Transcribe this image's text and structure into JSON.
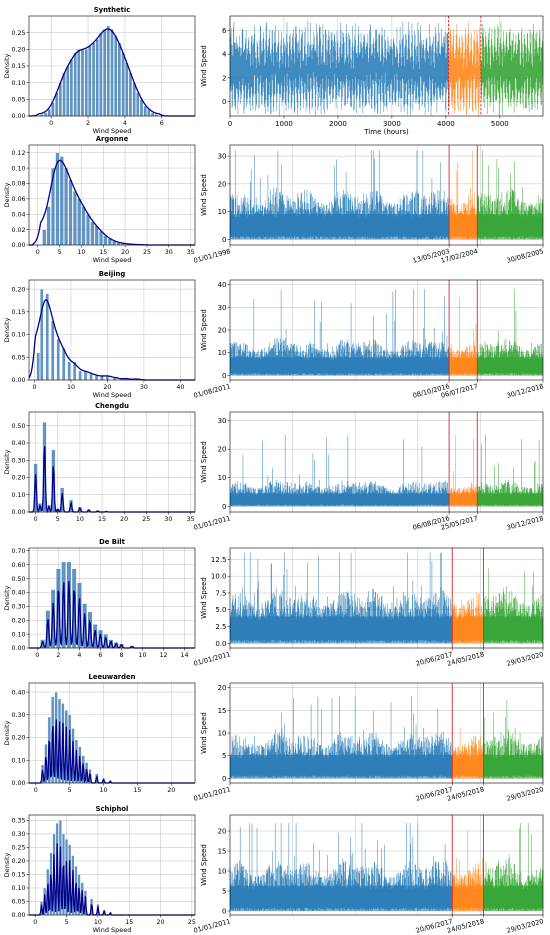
{
  "figure": {
    "colors": {
      "train": "#1f77b4",
      "val": "#ff7f0e",
      "test": "#2ca02c",
      "kde": "#00008b",
      "split_line": "#d62728",
      "grid": "#b0b0b0",
      "hist_bar": "#3a78b4"
    }
  },
  "chart_data": [
    {
      "type": "bar",
      "title": "Synthetic",
      "xlabel": "Wind Speed",
      "ylabel": "Density",
      "xlim": [
        -1.2,
        7.8
      ],
      "ylim": [
        0,
        0.3
      ],
      "xticks": [
        0,
        2,
        4,
        6
      ],
      "yticks": [
        0.0,
        0.05,
        0.1,
        0.15,
        0.2,
        0.25
      ],
      "kde": "smooth",
      "bins": [
        {
          "x": -0.5,
          "v": 0.005
        },
        {
          "x": -0.3,
          "v": 0.01
        },
        {
          "x": -0.1,
          "v": 0.02
        },
        {
          "x": 0.1,
          "v": 0.04
        },
        {
          "x": 0.3,
          "v": 0.07
        },
        {
          "x": 0.5,
          "v": 0.1
        },
        {
          "x": 0.7,
          "v": 0.13
        },
        {
          "x": 0.9,
          "v": 0.15
        },
        {
          "x": 1.1,
          "v": 0.17
        },
        {
          "x": 1.3,
          "v": 0.19
        },
        {
          "x": 1.5,
          "v": 0.2
        },
        {
          "x": 1.7,
          "v": 0.2
        },
        {
          "x": 1.9,
          "v": 0.2
        },
        {
          "x": 2.1,
          "v": 0.21
        },
        {
          "x": 2.3,
          "v": 0.22
        },
        {
          "x": 2.5,
          "v": 0.23
        },
        {
          "x": 2.7,
          "v": 0.25
        },
        {
          "x": 2.9,
          "v": 0.26
        },
        {
          "x": 3.1,
          "v": 0.27
        },
        {
          "x": 3.3,
          "v": 0.26
        },
        {
          "x": 3.5,
          "v": 0.24
        },
        {
          "x": 3.7,
          "v": 0.22
        },
        {
          "x": 3.9,
          "v": 0.19
        },
        {
          "x": 4.1,
          "v": 0.16
        },
        {
          "x": 4.3,
          "v": 0.13
        },
        {
          "x": 4.5,
          "v": 0.1
        },
        {
          "x": 4.7,
          "v": 0.07
        },
        {
          "x": 4.9,
          "v": 0.05
        },
        {
          "x": 5.1,
          "v": 0.03
        },
        {
          "x": 5.3,
          "v": 0.02
        },
        {
          "x": 5.5,
          "v": 0.01
        },
        {
          "x": 5.7,
          "v": 0.005
        }
      ]
    },
    {
      "type": "line",
      "xlabel": "Time (hours)",
      "ylabel": "Wind Speed",
      "xlim": [
        0,
        5800
      ],
      "ylim": [
        -1.2,
        7.2
      ],
      "xticks": [
        0,
        1000,
        2000,
        3000,
        4000,
        5000
      ],
      "yticks": [
        0,
        2,
        4,
        6
      ],
      "split_lines": [
        4050,
        4650
      ],
      "split_line_style": "dashed",
      "series": [
        {
          "segment": "train",
          "x_range": [
            0,
            4050
          ]
        },
        {
          "segment": "validation",
          "x_range": [
            4050,
            4650
          ]
        },
        {
          "segment": "test",
          "x_range": [
            4650,
            5800
          ]
        }
      ],
      "envelope": {
        "mean": 2.6,
        "low": -0.8,
        "high": 6.5
      }
    },
    {
      "type": "bar",
      "title": "Argonne",
      "xlabel": "Wind Speed",
      "ylabel": "Density",
      "xlim": [
        -2,
        36
      ],
      "ylim": [
        0,
        0.13
      ],
      "xticks": [
        0,
        5,
        10,
        15,
        20,
        25,
        30,
        35
      ],
      "yticks": [
        0.0,
        0.02,
        0.04,
        0.06,
        0.08,
        0.1,
        0.12
      ],
      "kde": "smooth",
      "bins": [
        {
          "x": 1.5,
          "v": 0.02
        },
        {
          "x": 2.5,
          "v": 0.05
        },
        {
          "x": 3.5,
          "v": 0.1
        },
        {
          "x": 4.5,
          "v": 0.12
        },
        {
          "x": 5.5,
          "v": 0.115
        },
        {
          "x": 6.5,
          "v": 0.1
        },
        {
          "x": 7.5,
          "v": 0.085
        },
        {
          "x": 8.5,
          "v": 0.07
        },
        {
          "x": 9.5,
          "v": 0.06
        },
        {
          "x": 10.5,
          "v": 0.05
        },
        {
          "x": 11.5,
          "v": 0.04
        },
        {
          "x": 12.5,
          "v": 0.03
        },
        {
          "x": 13.5,
          "v": 0.025
        },
        {
          "x": 14.5,
          "v": 0.018
        },
        {
          "x": 15.5,
          "v": 0.012
        },
        {
          "x": 16.5,
          "v": 0.008
        },
        {
          "x": 17.5,
          "v": 0.005
        },
        {
          "x": 18.5,
          "v": 0.003
        },
        {
          "x": 19.5,
          "v": 0.002
        },
        {
          "x": 21,
          "v": 0.001
        },
        {
          "x": 23,
          "v": 0.0005
        }
      ]
    },
    {
      "type": "line",
      "ylabel": "Wind Speed",
      "xlim": [
        0,
        100
      ],
      "ylim": [
        -2,
        34
      ],
      "yticks": [
        0,
        10,
        20,
        30
      ],
      "date_ticks": [
        {
          "label": "01/01/1998",
          "pos": 0
        },
        {
          "label": "13/05/2003",
          "pos": 70
        },
        {
          "label": "17/02/2004",
          "pos": 79
        },
        {
          "label": "30/08/2005",
          "pos": 100
        }
      ],
      "split_lines": [
        70,
        79
      ],
      "split_line_style": "solid",
      "envelope": {
        "mean": 8,
        "low": 0,
        "high": 32
      }
    },
    {
      "type": "bar",
      "title": "Beijing",
      "xlabel": "Wind Speed",
      "ylabel": "Density",
      "xlim": [
        -1.5,
        44
      ],
      "ylim": [
        0,
        0.22
      ],
      "xticks": [
        0,
        10,
        20,
        30,
        40
      ],
      "yticks": [
        0.0,
        0.05,
        0.1,
        0.15,
        0.2
      ],
      "kde": "smooth",
      "bins": [
        {
          "x": 1,
          "v": 0.06
        },
        {
          "x": 2,
          "v": 0.2
        },
        {
          "x": 3.5,
          "v": 0.19
        },
        {
          "x": 5,
          "v": 0.13
        },
        {
          "x": 6.5,
          "v": 0.09
        },
        {
          "x": 8,
          "v": 0.07
        },
        {
          "x": 9.5,
          "v": 0.04
        },
        {
          "x": 11,
          "v": 0.04
        },
        {
          "x": 12.5,
          "v": 0.02
        },
        {
          "x": 14,
          "v": 0.02
        },
        {
          "x": 15.5,
          "v": 0.015
        },
        {
          "x": 17,
          "v": 0.01
        },
        {
          "x": 18.5,
          "v": 0.008
        },
        {
          "x": 20,
          "v": 0.01
        },
        {
          "x": 22,
          "v": 0.005
        },
        {
          "x": 25,
          "v": 0.003
        },
        {
          "x": 28,
          "v": 0.002
        }
      ]
    },
    {
      "type": "line",
      "ylabel": "Wind Speed",
      "xlim": [
        0,
        100
      ],
      "ylim": [
        -2,
        42
      ],
      "yticks": [
        0,
        10,
        20,
        30,
        40
      ],
      "date_ticks": [
        {
          "label": "01/08/2011",
          "pos": 0
        },
        {
          "label": "08/10/2016",
          "pos": 70
        },
        {
          "label": "06/07/2017",
          "pos": 79
        },
        {
          "label": "30/12/2018",
          "pos": 100
        }
      ],
      "split_lines": [
        70,
        79
      ],
      "split_line_style": "solid",
      "envelope": {
        "mean": 7,
        "low": 0,
        "high": 38
      }
    },
    {
      "type": "bar",
      "title": "Chengdu",
      "xlabel": "",
      "ylabel": "Density",
      "xlim": [
        -1.5,
        36
      ],
      "ylim": [
        0,
        0.58
      ],
      "xticks": [
        0,
        5,
        10,
        15,
        20,
        25,
        30,
        35
      ],
      "yticks": [
        0.0,
        0.1,
        0.2,
        0.3,
        0.4,
        0.5
      ],
      "kde": "peaks",
      "bins": [
        {
          "x": 0,
          "v": 0.28
        },
        {
          "x": 1,
          "v": 0.05
        },
        {
          "x": 2,
          "v": 0.52
        },
        {
          "x": 3,
          "v": 0.04
        },
        {
          "x": 4,
          "v": 0.36
        },
        {
          "x": 5,
          "v": 0.02
        },
        {
          "x": 6,
          "v": 0.14
        },
        {
          "x": 8,
          "v": 0.07
        },
        {
          "x": 10,
          "v": 0.03
        },
        {
          "x": 12,
          "v": 0.015
        },
        {
          "x": 14,
          "v": 0.008
        },
        {
          "x": 16,
          "v": 0.004
        }
      ]
    },
    {
      "type": "line",
      "ylabel": "Wind Speed",
      "xlim": [
        0,
        100
      ],
      "ylim": [
        -2,
        33
      ],
      "yticks": [
        0,
        10,
        20,
        30
      ],
      "date_ticks": [
        {
          "label": "01/01/2011",
          "pos": 0
        },
        {
          "label": "06/08/2016",
          "pos": 70
        },
        {
          "label": "25/05/2017",
          "pos": 79
        },
        {
          "label": "30/12/2018",
          "pos": 100
        }
      ],
      "split_lines": [
        70,
        79
      ],
      "split_line_style": "solid",
      "envelope": {
        "mean": 4,
        "low": 0,
        "high": 26
      }
    },
    {
      "type": "bar",
      "title": "De Bilt",
      "xlabel": "",
      "ylabel": "Density",
      "xlim": [
        -0.8,
        15
      ],
      "ylim": [
        0,
        0.72
      ],
      "xticks": [
        0,
        2,
        4,
        6,
        8,
        10,
        12,
        14
      ],
      "yticks": [
        0.0,
        0.1,
        0.2,
        0.3,
        0.4,
        0.5,
        0.6,
        0.7
      ],
      "kde": "peaks",
      "bins": [
        {
          "x": 0.5,
          "v": 0.06
        },
        {
          "x": 1,
          "v": 0.27
        },
        {
          "x": 1.5,
          "v": 0.42
        },
        {
          "x": 2,
          "v": 0.57
        },
        {
          "x": 2.5,
          "v": 0.62
        },
        {
          "x": 3,
          "v": 0.62
        },
        {
          "x": 3.5,
          "v": 0.57
        },
        {
          "x": 4,
          "v": 0.47
        },
        {
          "x": 4.5,
          "v": 0.32
        },
        {
          "x": 5,
          "v": 0.26
        },
        {
          "x": 5.5,
          "v": 0.17
        },
        {
          "x": 6,
          "v": 0.13
        },
        {
          "x": 6.5,
          "v": 0.1
        },
        {
          "x": 7,
          "v": 0.06
        },
        {
          "x": 7.5,
          "v": 0.04
        },
        {
          "x": 8,
          "v": 0.03
        },
        {
          "x": 9,
          "v": 0.015
        }
      ]
    },
    {
      "type": "line",
      "ylabel": "Wind Speed",
      "xlim": [
        0,
        100
      ],
      "ylim": [
        -0.7,
        14.2
      ],
      "yticks": [
        0.0,
        2.5,
        5.0,
        7.5,
        10.0,
        12.5
      ],
      "date_ticks": [
        {
          "label": "01/01/2011",
          "pos": 0
        },
        {
          "label": "20/06/2017",
          "pos": 71
        },
        {
          "label": "24/05/2018",
          "pos": 81
        },
        {
          "label": "29/03/2020",
          "pos": 100
        }
      ],
      "split_lines": [
        71,
        81
      ],
      "split_line_style": "solid",
      "envelope": {
        "mean": 3.5,
        "low": 0,
        "high": 13.5
      }
    },
    {
      "type": "bar",
      "title": "Leeuwarden",
      "xlabel": "",
      "ylabel": "Density",
      "xlim": [
        -1,
        23.5
      ],
      "ylim": [
        0,
        0.44
      ],
      "xticks": [
        0,
        5,
        10,
        15,
        20
      ],
      "yticks": [
        0.0,
        0.1,
        0.2,
        0.3,
        0.4
      ],
      "kde": "peaks",
      "bins": [
        {
          "x": 1,
          "v": 0.08
        },
        {
          "x": 1.5,
          "v": 0.17
        },
        {
          "x": 2,
          "v": 0.29
        },
        {
          "x": 2.5,
          "v": 0.38
        },
        {
          "x": 3,
          "v": 0.4
        },
        {
          "x": 3.5,
          "v": 0.37
        },
        {
          "x": 4,
          "v": 0.35
        },
        {
          "x": 4.5,
          "v": 0.32
        },
        {
          "x": 5,
          "v": 0.3
        },
        {
          "x": 5.5,
          "v": 0.24
        },
        {
          "x": 6,
          "v": 0.19
        },
        {
          "x": 6.5,
          "v": 0.16
        },
        {
          "x": 7,
          "v": 0.12
        },
        {
          "x": 7.5,
          "v": 0.09
        },
        {
          "x": 8,
          "v": 0.06
        },
        {
          "x": 9,
          "v": 0.04
        },
        {
          "x": 10,
          "v": 0.02
        },
        {
          "x": 11,
          "v": 0.01
        }
      ]
    },
    {
      "type": "line",
      "ylabel": "Wind Speed",
      "xlim": [
        0,
        100
      ],
      "ylim": [
        -1,
        21
      ],
      "yticks": [
        0,
        5,
        10,
        15,
        20
      ],
      "date_ticks": [
        {
          "label": "01/01/2011",
          "pos": 0
        },
        {
          "label": "20/06/2017",
          "pos": 71
        },
        {
          "label": "24/05/2018",
          "pos": 81
        },
        {
          "label": "29/03/2020",
          "pos": 100
        }
      ],
      "split_lines": [
        71,
        81
      ],
      "split_line_style": "solid",
      "envelope": {
        "mean": 4.5,
        "low": 0,
        "high": 18
      }
    },
    {
      "type": "bar",
      "title": "Schiphol",
      "xlabel": "Wind Speed",
      "ylabel": "Density",
      "xlim": [
        -1,
        25.5
      ],
      "ylim": [
        0,
        0.37
      ],
      "xticks": [
        0,
        5,
        10,
        15,
        20,
        25
      ],
      "yticks": [
        0.0,
        0.05,
        0.1,
        0.15,
        0.2,
        0.25,
        0.3,
        0.35
      ],
      "kde": "peaks",
      "bins": [
        {
          "x": 1,
          "v": 0.05
        },
        {
          "x": 1.5,
          "v": 0.1
        },
        {
          "x": 2,
          "v": 0.17
        },
        {
          "x": 2.5,
          "v": 0.23
        },
        {
          "x": 3,
          "v": 0.3
        },
        {
          "x": 3.5,
          "v": 0.34
        },
        {
          "x": 4,
          "v": 0.35
        },
        {
          "x": 4.5,
          "v": 0.3
        },
        {
          "x": 5,
          "v": 0.28
        },
        {
          "x": 5.5,
          "v": 0.26
        },
        {
          "x": 6,
          "v": 0.22
        },
        {
          "x": 6.5,
          "v": 0.18
        },
        {
          "x": 7,
          "v": 0.15
        },
        {
          "x": 7.5,
          "v": 0.12
        },
        {
          "x": 8,
          "v": 0.09
        },
        {
          "x": 9,
          "v": 0.06
        },
        {
          "x": 10,
          "v": 0.04
        },
        {
          "x": 11,
          "v": 0.02
        },
        {
          "x": 12,
          "v": 0.01
        }
      ]
    },
    {
      "type": "line",
      "ylabel": "Wind Speed",
      "xlim": [
        0,
        100
      ],
      "ylim": [
        -1,
        24
      ],
      "yticks": [
        0,
        5,
        10,
        15,
        20
      ],
      "date_ticks": [
        {
          "label": "01/01/2011",
          "pos": 0
        },
        {
          "label": "20/06/2017",
          "pos": 71
        },
        {
          "label": "24/05/2018",
          "pos": 81
        },
        {
          "label": "29/03/2020",
          "pos": 100
        }
      ],
      "split_lines": [
        71,
        81
      ],
      "split_line_style": "solid",
      "envelope": {
        "mean": 5.5,
        "low": 0,
        "high": 22
      }
    }
  ]
}
